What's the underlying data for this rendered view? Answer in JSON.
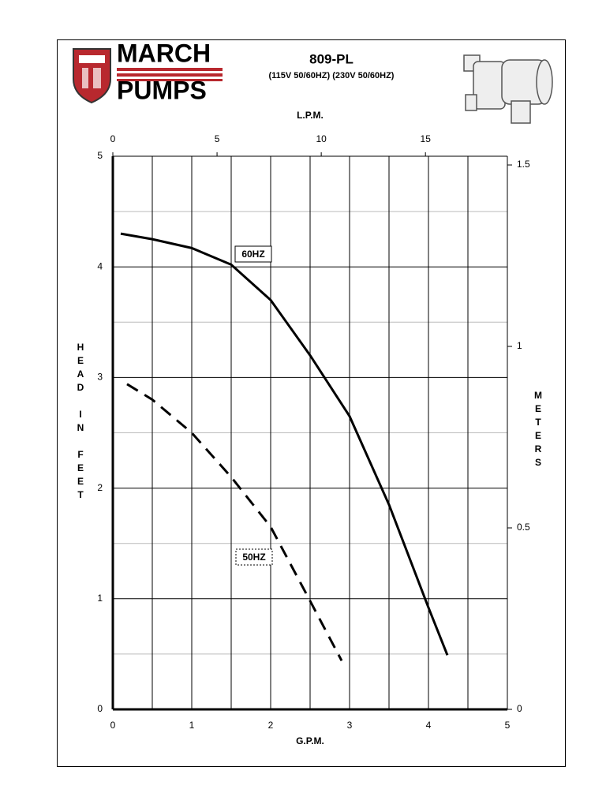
{
  "chart_data": {
    "type": "line",
    "brand": [
      "MARCH",
      "PUMPS"
    ],
    "title": "809-PL",
    "subtitle": "(115V 50/60HZ) (230V 50/60HZ)",
    "xlabel": "G.P.M.",
    "x2label": "L.P.M.",
    "ylabel": "HEAD IN FEET",
    "y2label": "METERS",
    "xlim": [
      0,
      5
    ],
    "xticks": [
      0,
      1,
      2,
      3,
      4,
      5
    ],
    "x2lim": [
      0,
      18.93
    ],
    "x2ticks": [
      0,
      5,
      10,
      15
    ],
    "ylim": [
      0,
      5
    ],
    "yticks": [
      0,
      1,
      2,
      3,
      4,
      5
    ],
    "y2lim": [
      0,
      1.524
    ],
    "y2ticks": [
      0,
      0.5,
      1,
      1.5
    ],
    "grid": true,
    "series": [
      {
        "name": "60HZ",
        "color": "#000000",
        "dashed": false,
        "x": [
          0.1,
          0.5,
          1,
          1.5,
          2,
          2.5,
          3,
          3.5,
          4,
          4.24
        ],
        "values": [
          4.3,
          4.25,
          4.17,
          4.02,
          3.7,
          3.2,
          2.65,
          1.85,
          0.92,
          0.49
        ]
      },
      {
        "name": "50HZ",
        "color": "#000000",
        "dashed": true,
        "x": [
          0.18,
          0.5,
          1,
          1.5,
          2,
          2.5,
          2.9
        ],
        "values": [
          2.94,
          2.8,
          2.5,
          2.1,
          1.65,
          0.98,
          0.44
        ]
      }
    ]
  }
}
